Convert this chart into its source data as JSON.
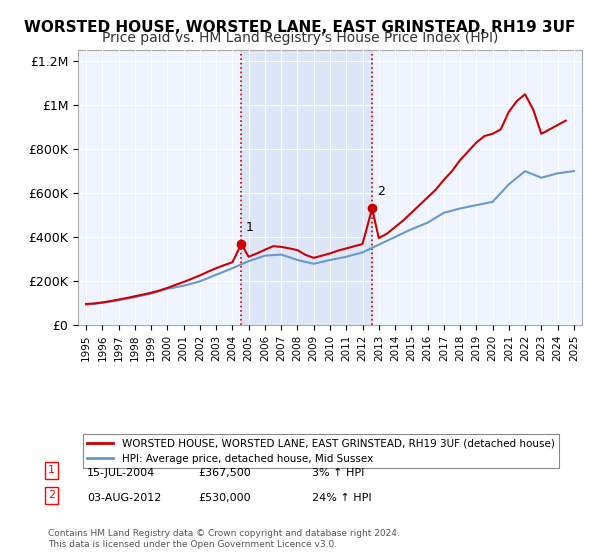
{
  "title": "WORSTED HOUSE, WORSTED LANE, EAST GRINSTEAD, RH19 3UF",
  "subtitle": "Price paid vs. HM Land Registry's House Price Index (HPI)",
  "title_fontsize": 11,
  "subtitle_fontsize": 10,
  "background_color": "#ffffff",
  "plot_bg_color": "#f0f4ff",
  "grid_color": "#ffffff",
  "ylim": [
    0,
    1250000
  ],
  "xlim_start": 1995,
  "xlim_end": 2025.5,
  "yticks": [
    0,
    200000,
    400000,
    600000,
    800000,
    1000000,
    1200000
  ],
  "ytick_labels": [
    "£0",
    "£200K",
    "£400K",
    "£600K",
    "£800K",
    "£1M",
    "£1.2M"
  ],
  "xticks": [
    1995,
    1996,
    1997,
    1998,
    1999,
    2000,
    2001,
    2002,
    2003,
    2004,
    2005,
    2006,
    2007,
    2008,
    2009,
    2010,
    2011,
    2012,
    2013,
    2014,
    2015,
    2016,
    2017,
    2018,
    2019,
    2020,
    2021,
    2022,
    2023,
    2024,
    2025
  ],
  "sale1_x": 2004.54,
  "sale1_y": 367500,
  "sale1_label": "1",
  "sale2_x": 2012.59,
  "sale2_y": 530000,
  "sale2_label": "2",
  "vline_color": "#cc0000",
  "vline_style": ":",
  "shade_color": "#ccd9f0",
  "shade_alpha": 0.5,
  "red_line_color": "#cc0000",
  "blue_line_color": "#6699cc",
  "legend1_label": "WORSTED HOUSE, WORSTED LANE, EAST GRINSTEAD, RH19 3UF (detached house)",
  "legend2_label": "HPI: Average price, detached house, Mid Sussex",
  "annot1_date": "15-JUL-2004",
  "annot1_price": "£367,500",
  "annot1_hpi": "3% ↑ HPI",
  "annot2_date": "03-AUG-2012",
  "annot2_price": "£530,000",
  "annot2_hpi": "24% ↑ HPI",
  "footer": "Contains HM Land Registry data © Crown copyright and database right 2024.\nThis data is licensed under the Open Government Licence v3.0.",
  "hpi_years": [
    1995,
    1996,
    1997,
    1998,
    1999,
    2000,
    2001,
    2002,
    2003,
    2004,
    2005,
    2006,
    2007,
    2008,
    2009,
    2010,
    2011,
    2012,
    2013,
    2014,
    2015,
    2016,
    2017,
    2018,
    2019,
    2020,
    2021,
    2022,
    2023,
    2024,
    2025
  ],
  "hpi_values": [
    92000,
    100000,
    112000,
    126000,
    142000,
    164000,
    178000,
    198000,
    228000,
    258000,
    290000,
    315000,
    320000,
    295000,
    278000,
    295000,
    310000,
    330000,
    365000,
    400000,
    435000,
    465000,
    510000,
    530000,
    545000,
    560000,
    640000,
    700000,
    670000,
    690000,
    700000
  ],
  "red_years": [
    1995.0,
    1995.5,
    1996.0,
    1996.5,
    1997.0,
    1997.5,
    1998.0,
    1998.5,
    1999.0,
    1999.5,
    2000.0,
    2000.5,
    2001.0,
    2001.5,
    2002.0,
    2002.5,
    2003.0,
    2003.5,
    2004.0,
    2004.54,
    2005.0,
    2005.5,
    2006.0,
    2006.5,
    2007.0,
    2007.5,
    2008.0,
    2008.5,
    2009.0,
    2009.5,
    2010.0,
    2010.5,
    2011.0,
    2011.5,
    2012.0,
    2012.59,
    2013.0,
    2013.5,
    2014.0,
    2014.5,
    2015.0,
    2015.5,
    2016.0,
    2016.5,
    2017.0,
    2017.5,
    2018.0,
    2018.5,
    2019.0,
    2019.5,
    2020.0,
    2020.5,
    2021.0,
    2021.5,
    2022.0,
    2022.5,
    2023.0,
    2023.5,
    2024.0,
    2024.5
  ],
  "red_values": [
    95000,
    97000,
    102000,
    108000,
    115000,
    122000,
    130000,
    138000,
    146000,
    156000,
    168000,
    182000,
    195000,
    210000,
    225000,
    242000,
    258000,
    272000,
    285000,
    367500,
    310000,
    325000,
    342000,
    358000,
    355000,
    348000,
    340000,
    318000,
    305000,
    315000,
    325000,
    338000,
    348000,
    358000,
    368000,
    530000,
    395000,
    415000,
    445000,
    475000,
    510000,
    545000,
    580000,
    615000,
    660000,
    700000,
    750000,
    790000,
    830000,
    860000,
    870000,
    890000,
    970000,
    1020000,
    1050000,
    980000,
    870000,
    890000,
    910000,
    930000
  ]
}
